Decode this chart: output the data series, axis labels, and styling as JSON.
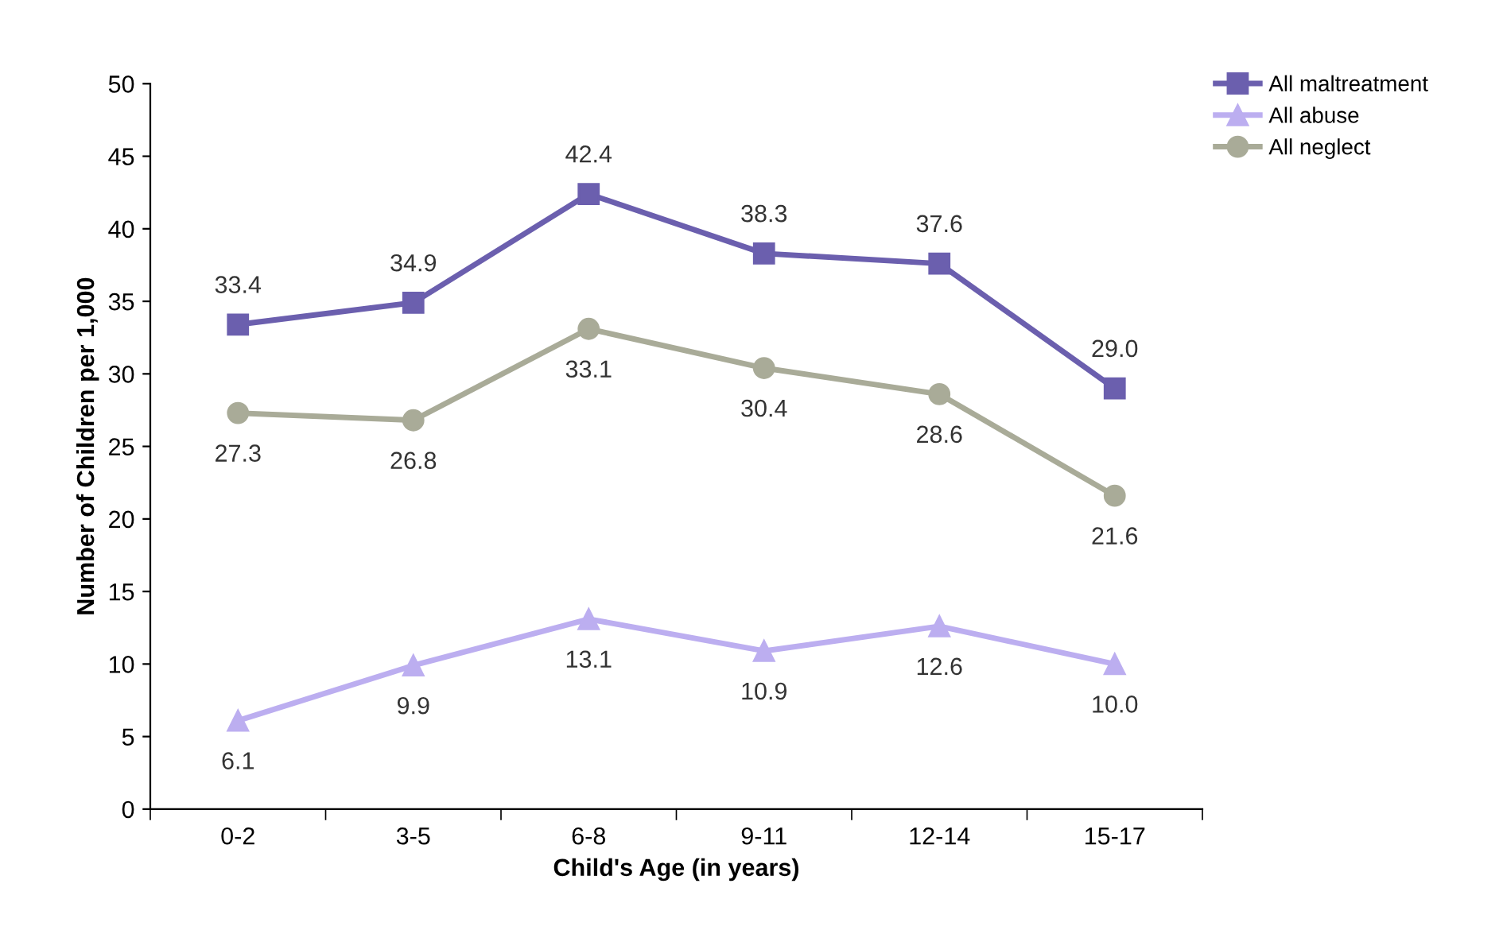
{
  "chart_data": {
    "type": "line",
    "xlabel": "Child's Age (in years)",
    "ylabel": "Number of Children per 1,000",
    "categories": [
      "0-2",
      "3-5",
      "6-8",
      "9-11",
      "12-14",
      "15-17"
    ],
    "series": [
      {
        "name": "All maltreatment",
        "color": "#6b5fae",
        "marker": "square",
        "values": [
          33.4,
          34.9,
          42.4,
          38.3,
          37.6,
          29.0
        ],
        "value_labels": [
          "33.4",
          "34.9",
          "42.4",
          "38.3",
          "37.6",
          "29.0"
        ]
      },
      {
        "name": "All abuse",
        "color": "#bcaef0",
        "marker": "triangle",
        "values": [
          6.1,
          9.9,
          13.1,
          10.9,
          12.6,
          10.0
        ],
        "value_labels": [
          "6.1",
          "9.9",
          "13.1",
          "10.9",
          "12.6",
          "10.0"
        ]
      },
      {
        "name": "All neglect",
        "color": "#a9ab98",
        "marker": "circle",
        "values": [
          27.3,
          26.8,
          33.1,
          30.4,
          28.6,
          21.6
        ],
        "value_labels": [
          "27.3",
          "26.8",
          "33.1",
          "30.4",
          "28.6",
          "21.6"
        ]
      }
    ],
    "ylim": [
      0,
      50
    ],
    "yticks": [
      0,
      5,
      10,
      15,
      20,
      25,
      30,
      35,
      40,
      45,
      50
    ],
    "grid": false,
    "legend": "top right",
    "line_style": "solid"
  }
}
